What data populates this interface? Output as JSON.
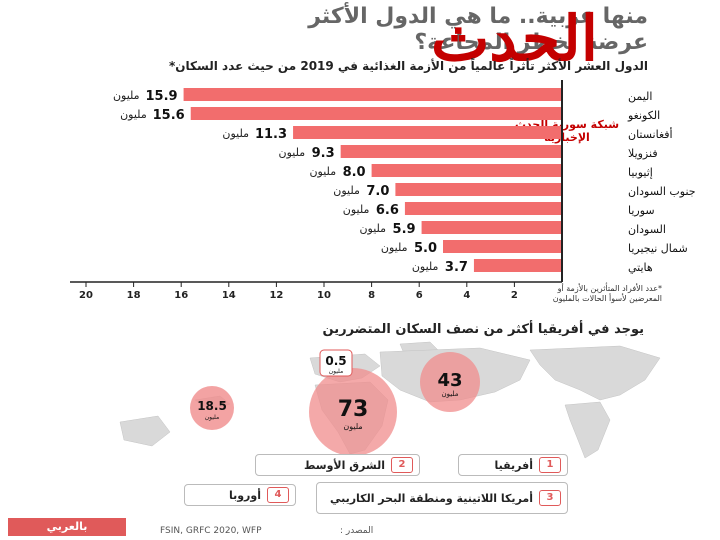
{
  "header": {
    "title_line1": "منها عربية.. ما هي الدول الأكثر",
    "title_line2": "عرضة لخطر المجاعة؟",
    "subtitle": "الدول العشر الأكثر تأثراً عالمياً من الأزمة الغذائية في 2019 من حيث عدد السكان*",
    "logo_text": "الحدث",
    "site_name": "شبكة سورية الحدث الإخبارية"
  },
  "colors": {
    "bar": "#f26d6d",
    "accent": "#e05a5a",
    "circle": "#f08c8c",
    "axis": "#222222",
    "land": "#d9d9d9"
  },
  "chart_data": {
    "type": "bar",
    "orientation": "horizontal",
    "title": "الدول العشر الأكثر تأثراً عالمياً من الأزمة الغذائية في 2019 من حيث عدد السكان*",
    "categories": [
      "اليمن",
      "الكونغو",
      "أفغانستان",
      "فنزويلا",
      "إثيوبيا",
      "جنوب السودان",
      "سوريا",
      "السودان",
      "شمال نيجيريا",
      "هايتي"
    ],
    "values": [
      15.9,
      15.6,
      11.3,
      9.3,
      8.0,
      7.0,
      6.6,
      5.9,
      5.0,
      3.7
    ],
    "value_labels": [
      "15.9",
      "15.6",
      "11.3",
      "9.3",
      "8.0",
      "7.0",
      "6.6",
      "5.9",
      "5.0",
      "3.7"
    ],
    "unit_label": "مليون",
    "xlim": [
      0,
      20
    ],
    "x_direction": "right-to-left",
    "ticks": [
      20,
      18,
      16,
      14,
      12,
      10,
      8,
      6,
      4,
      2
    ],
    "grid": false
  },
  "footnote": "*عدد الأفراد المتأثرين بالأزمة أو المعرضين لأسوأ الحالات بالمليون",
  "map_section": {
    "title": "يوجد في أفريقيا أكثر من نصف السكان المتضررين",
    "unit": "مليون",
    "regions": [
      {
        "id": "africa",
        "value": "73"
      },
      {
        "id": "middle-east",
        "value": "43"
      },
      {
        "id": "latin-america",
        "value": "18.5"
      },
      {
        "id": "europe",
        "value": "0.5"
      }
    ],
    "legend": [
      {
        "num": "1",
        "label": "أفريقيا"
      },
      {
        "num": "2",
        "label": "الشرق الأوسط"
      },
      {
        "num": "3",
        "label": "أمريكا اللاتينية ومنطقة البحر الكاريبي"
      },
      {
        "num": "4",
        "label": "أوروبا"
      }
    ]
  },
  "footer": {
    "source_label": "المصدر :",
    "source": "FSIN, GRFC 2020, WFP",
    "brand": "بالعربي"
  }
}
